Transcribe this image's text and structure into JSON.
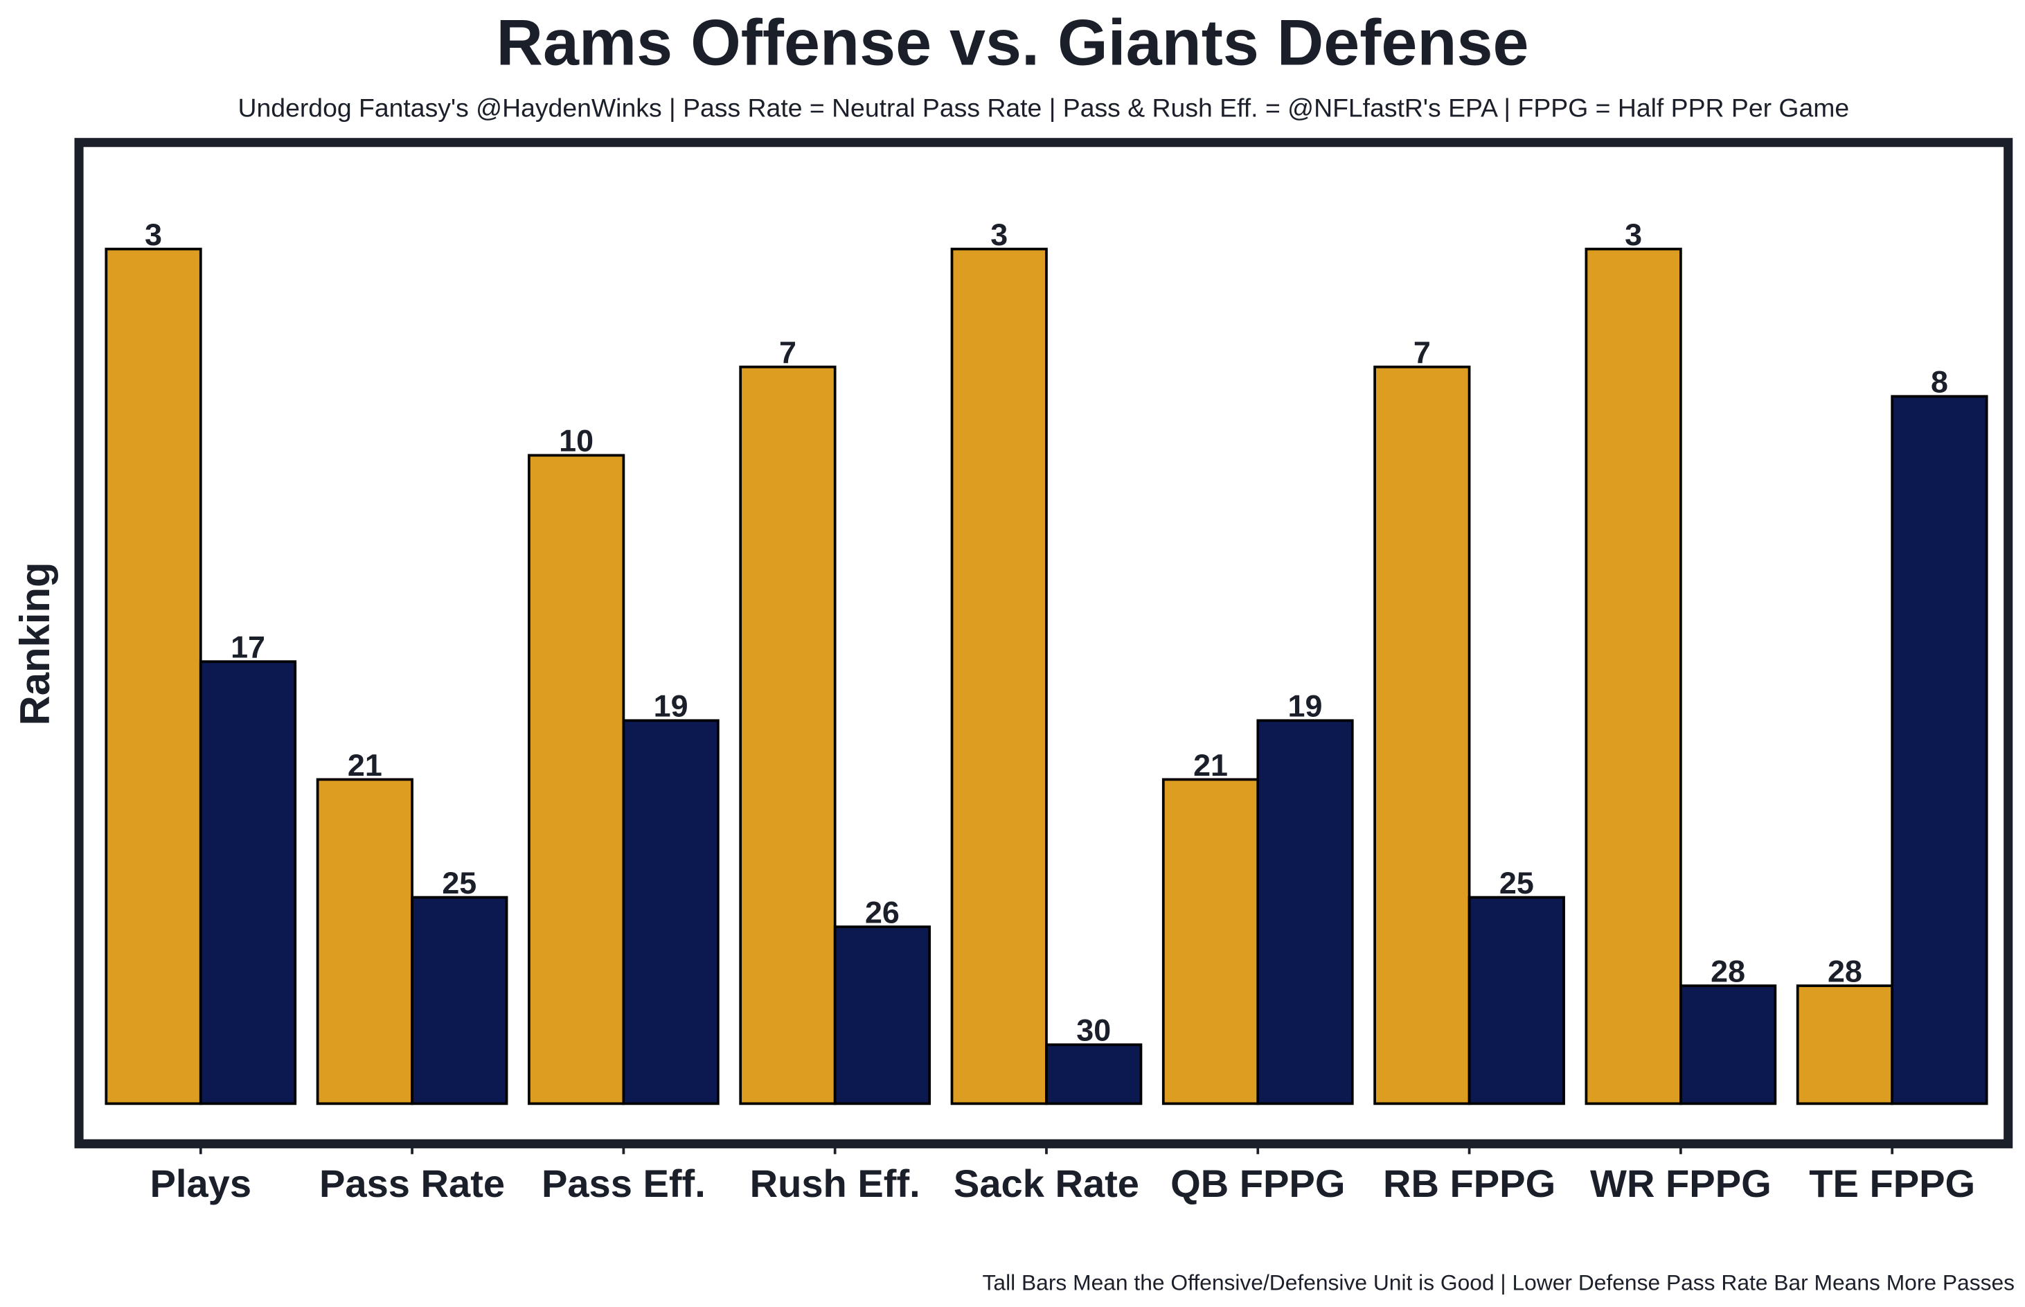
{
  "chart_data": {
    "type": "bar",
    "title": "Rams Offense vs. Giants Defense",
    "subtitle": "Underdog Fantasy's @HaydenWinks | Pass Rate = Neutral Pass Rate | Pass & Rush Eff. = @NFLfastR's EPA | FPPG = Half PPR Per Game",
    "ylabel": "Ranking",
    "footnote": "Tall Bars Mean the Offensive/Defensive Unit is Good | Lower Defense Pass Rate Bar Means More Passes",
    "categories": [
      "Plays",
      "Pass Rate",
      "Pass Eff.",
      "Rush Eff.",
      "Sack Rate",
      "QB FPPG",
      "RB FPPG",
      "WR FPPG",
      "TE FPPG"
    ],
    "series": [
      {
        "color": "#dc9d21",
        "values": [
          3,
          21,
          10,
          7,
          3,
          21,
          7,
          3,
          28
        ]
      },
      {
        "color": "#0c1850",
        "values": [
          17,
          25,
          19,
          26,
          30,
          19,
          25,
          28,
          8
        ]
      }
    ],
    "ylim": [
      32,
      0
    ]
  }
}
